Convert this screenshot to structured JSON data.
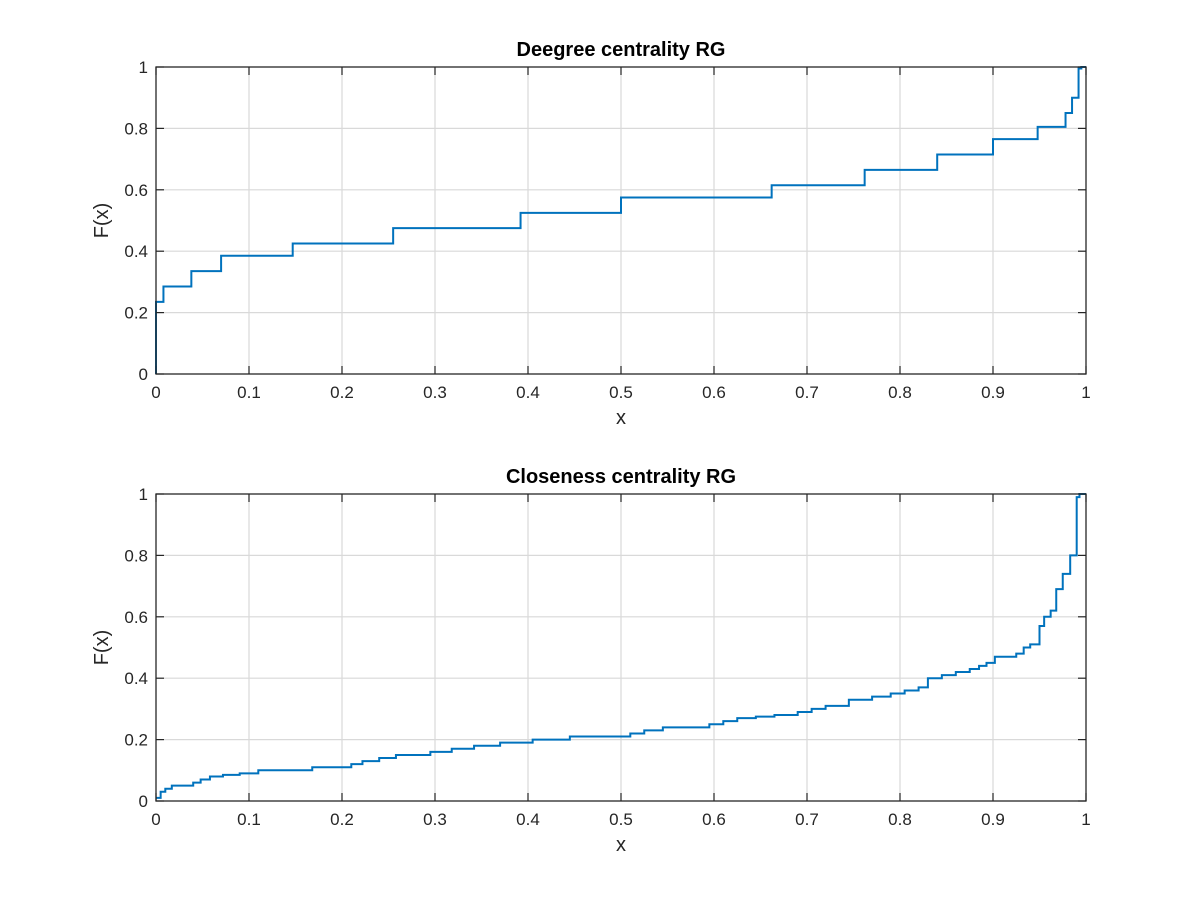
{
  "chart_data": [
    {
      "type": "line",
      "title": "Deegree centrality RG",
      "xlabel": "x",
      "ylabel": "F(x)",
      "xlim": [
        0,
        1
      ],
      "ylim": [
        0,
        1
      ],
      "xticks": [
        "0",
        "0.1",
        "0.2",
        "0.3",
        "0.4",
        "0.5",
        "0.6",
        "0.7",
        "0.8",
        "0.9",
        "1"
      ],
      "yticks": [
        "0",
        "0.2",
        "0.4",
        "0.6",
        "0.8",
        "1"
      ],
      "grid": true,
      "step": true,
      "color": "#0072bd",
      "series": [
        {
          "x": [
            0,
            0,
            0.008,
            0.038,
            0.07,
            0.147,
            0.255,
            0.392,
            0.5,
            0.662,
            0.762,
            0.84,
            0.9,
            0.948,
            0.978,
            0.985,
            0.992,
            0.995,
            1
          ],
          "y": [
            0,
            0.235,
            0.285,
            0.335,
            0.385,
            0.425,
            0.475,
            0.525,
            0.575,
            0.615,
            0.665,
            0.715,
            0.765,
            0.805,
            0.85,
            0.9,
            0.995,
            1,
            1
          ]
        }
      ]
    },
    {
      "type": "line",
      "title": "Closeness centrality RG",
      "xlabel": "x",
      "ylabel": "F(x)",
      "xlim": [
        0,
        1
      ],
      "ylim": [
        0,
        1
      ],
      "xticks": [
        "0",
        "0.1",
        "0.2",
        "0.3",
        "0.4",
        "0.5",
        "0.6",
        "0.7",
        "0.8",
        "0.9",
        "1"
      ],
      "yticks": [
        "0",
        "0.2",
        "0.4",
        "0.6",
        "0.8",
        "1"
      ],
      "grid": true,
      "step": true,
      "color": "#0072bd",
      "series": [
        {
          "x": [
            0,
            0.005,
            0.01,
            0.017,
            0.03,
            0.04,
            0.048,
            0.058,
            0.072,
            0.09,
            0.11,
            0.13,
            0.15,
            0.168,
            0.19,
            0.21,
            0.222,
            0.24,
            0.258,
            0.275,
            0.295,
            0.318,
            0.342,
            0.37,
            0.405,
            0.445,
            0.49,
            0.51,
            0.525,
            0.545,
            0.575,
            0.595,
            0.61,
            0.625,
            0.645,
            0.665,
            0.69,
            0.705,
            0.72,
            0.745,
            0.77,
            0.79,
            0.805,
            0.82,
            0.83,
            0.845,
            0.86,
            0.875,
            0.885,
            0.893,
            0.902,
            0.925,
            0.933,
            0.94,
            0.95,
            0.955,
            0.962,
            0.968,
            0.975,
            0.983,
            0.99,
            0.993,
            1
          ],
          "y": [
            0.01,
            0.03,
            0.04,
            0.05,
            0.05,
            0.06,
            0.07,
            0.08,
            0.085,
            0.09,
            0.1,
            0.1,
            0.1,
            0.11,
            0.11,
            0.12,
            0.13,
            0.14,
            0.15,
            0.15,
            0.16,
            0.17,
            0.18,
            0.19,
            0.2,
            0.21,
            0.21,
            0.22,
            0.23,
            0.24,
            0.24,
            0.25,
            0.26,
            0.27,
            0.275,
            0.28,
            0.29,
            0.3,
            0.31,
            0.33,
            0.34,
            0.35,
            0.36,
            0.37,
            0.4,
            0.41,
            0.42,
            0.43,
            0.44,
            0.45,
            0.47,
            0.48,
            0.5,
            0.51,
            0.57,
            0.6,
            0.62,
            0.69,
            0.74,
            0.8,
            0.99,
            1,
            1
          ]
        }
      ]
    }
  ]
}
